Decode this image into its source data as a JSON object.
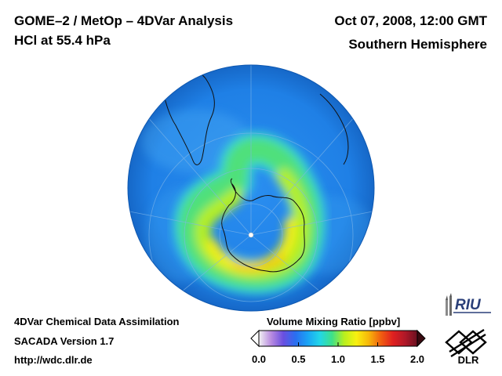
{
  "header": {
    "title_line1": "GOME–2 / MetOp – 4DVar Analysis",
    "title_line2": "HCl at 55.4 hPa",
    "date": "Oct 07, 2008, 12:00 GMT",
    "region": "Southern Hemisphere"
  },
  "footer": {
    "line1": "4DVar Chemical Data Assimilation",
    "line2": "SACADA Version 1.7",
    "line3": "http://wdc.dlr.de"
  },
  "colorbar": {
    "title": "Volume Mixing Ratio [ppbv]",
    "min": 0.0,
    "max": 2.0,
    "ticks": [
      "0.0",
      "0.5",
      "1.0",
      "1.5",
      "2.0"
    ],
    "colors": [
      "#f2f2f2",
      "#b98ce0",
      "#6a4fe0",
      "#2a6ef0",
      "#1aa3f5",
      "#22d6e8",
      "#3ee08a",
      "#b8ef1e",
      "#f8f010",
      "#f7b80a",
      "#f06010",
      "#e02020",
      "#b01828",
      "#6a1020"
    ]
  },
  "logos": {
    "riu": "RIU",
    "dlr": "DLR"
  },
  "map": {
    "projection": "orthographic, south pole centered",
    "background_color": "#1f7fe0",
    "ring_level_ppbv": 1.4,
    "pole_marker": "white-dot-icon"
  }
}
